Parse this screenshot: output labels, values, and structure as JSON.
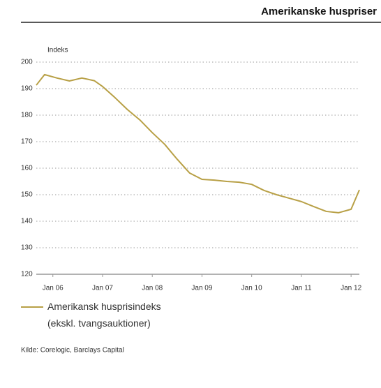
{
  "chart_data": {
    "type": "line",
    "title": "Amerikanske huspriser",
    "y_label": "Indeks",
    "x": [
      "2005-09",
      "2005-11",
      "2006-02",
      "2006-05",
      "2006-08",
      "2006-11",
      "2007-01",
      "2007-04",
      "2007-07",
      "2007-10",
      "2008-01",
      "2008-04",
      "2008-07",
      "2008-10",
      "2009-01",
      "2009-04",
      "2009-07",
      "2009-10",
      "2010-01",
      "2010-04",
      "2010-07",
      "2010-10",
      "2011-01",
      "2011-04",
      "2011-07",
      "2011-10",
      "2012-01",
      "2012-03"
    ],
    "series": [
      {
        "name": "Amerikansk husprisindeks (ekskl. tvangsauktioner)",
        "color": "#b8a046",
        "values": [
          191.3,
          195.3,
          194,
          192.9,
          194,
          193,
          190.8,
          186.6,
          182.1,
          178.2,
          173.4,
          169,
          163.4,
          158.2,
          155.8,
          155.5,
          155,
          154.7,
          153.9,
          151.6,
          150,
          148.7,
          147.4,
          145.5,
          143.7,
          143.2,
          144.5,
          151.8
        ]
      }
    ],
    "xlim": [
      "2005-09",
      "2012-03"
    ],
    "xticks": [
      {
        "value": "2006-01",
        "label": "Jan 06"
      },
      {
        "value": "2007-01",
        "label": "Jan 07"
      },
      {
        "value": "2008-01",
        "label": "Jan 08"
      },
      {
        "value": "2009-01",
        "label": "Jan 09"
      },
      {
        "value": "2010-01",
        "label": "Jan 10"
      },
      {
        "value": "2011-01",
        "label": "Jan 11"
      },
      {
        "value": "2012-01",
        "label": "Jan 12"
      }
    ],
    "ylim": [
      120,
      200
    ],
    "yticks": [
      120,
      130,
      140,
      150,
      160,
      170,
      180,
      190,
      200
    ],
    "grid": true,
    "source": "Kilde: Corelogic, Barclays Capital"
  }
}
